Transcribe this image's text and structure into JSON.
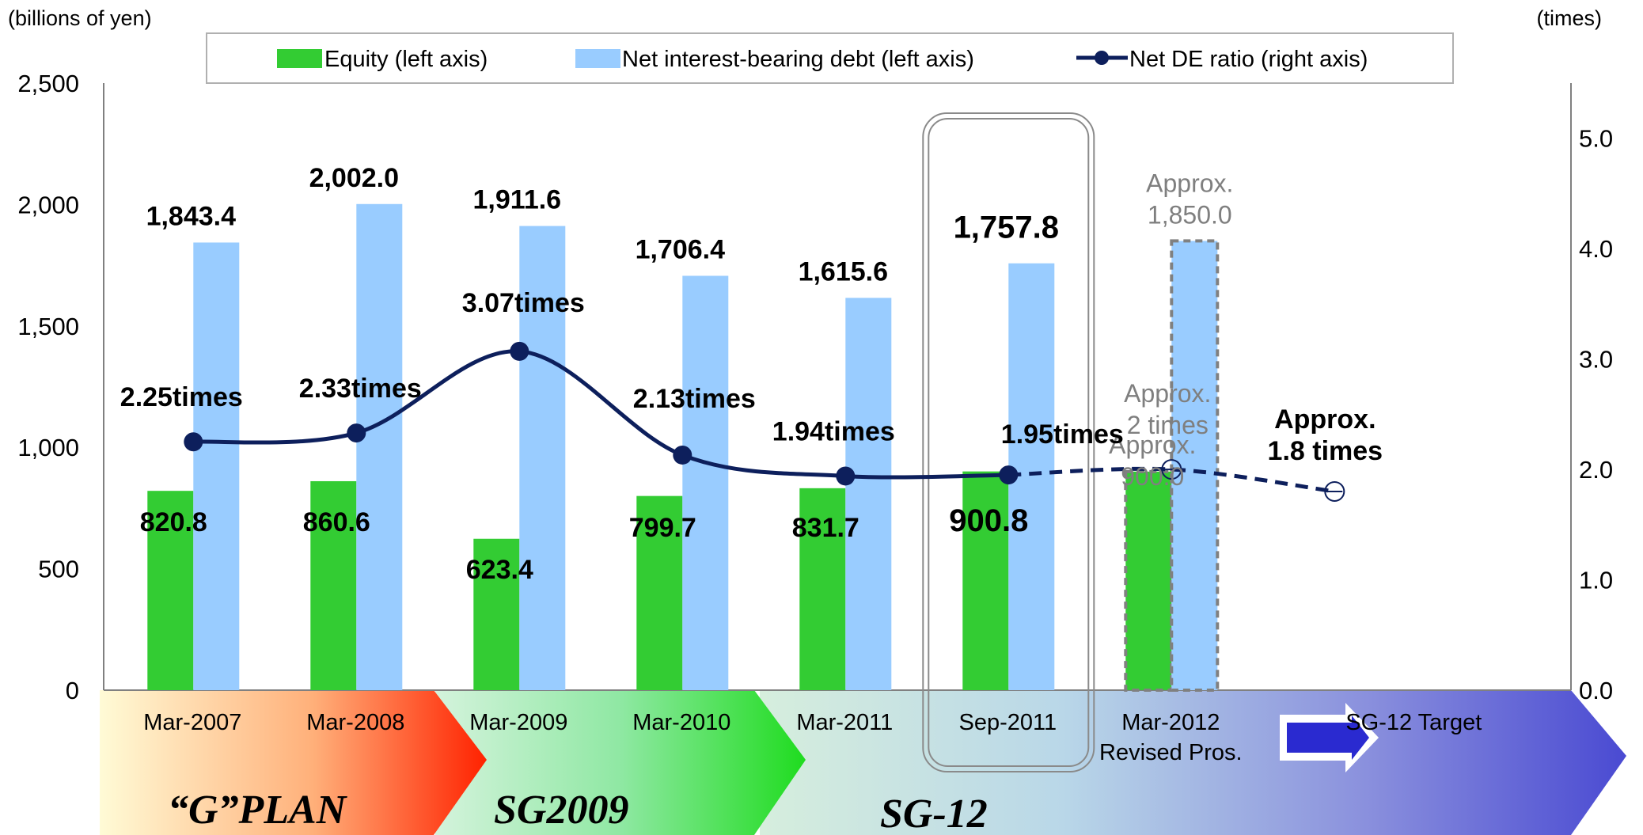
{
  "chart_data": {
    "type": "bar",
    "title": "",
    "y_left_unit": "(billions of yen)",
    "y_right_unit": "(times)",
    "y_left_ticks": [
      "0",
      "500",
      "1,000",
      "1,500",
      "2,000",
      "2,500"
    ],
    "y_right_ticks": [
      "0.0",
      "1.0",
      "2.0",
      "3.0",
      "4.0",
      "5.0"
    ],
    "ylim_left": [
      0,
      2500
    ],
    "ylim_right": [
      0,
      5.5
    ],
    "categories": [
      "Mar-2007",
      "Mar-2008",
      "Mar-2009",
      "Mar-2010",
      "Mar-2011",
      "Sep-2011",
      "Mar-2012",
      "SG-12 Target"
    ],
    "category_sublabels": [
      "",
      "",
      "",
      "",
      "",
      "",
      "Revised Pros.",
      ""
    ],
    "series": [
      {
        "name": "Equity (left axis)",
        "axis": "left",
        "color": "#33cc33",
        "values": [
          820.8,
          860.6,
          623.4,
          799.7,
          831.7,
          900.8,
          900.0,
          null
        ],
        "labels": [
          "820.8",
          "860.6",
          "623.4",
          "799.7",
          "831.7",
          "900.8",
          "Approx.|900.0",
          ""
        ]
      },
      {
        "name": "Net interest-bearing debt (left axis)",
        "axis": "left",
        "color": "#99ccff",
        "values": [
          1843.4,
          2002.0,
          1911.6,
          1706.4,
          1615.6,
          1757.8,
          1850.0,
          null
        ],
        "labels": [
          "1,843.4",
          "2,002.0",
          "1,911.6",
          "1,706.4",
          "1,615.6",
          "1,757.8",
          "Approx.|1,850.0",
          ""
        ]
      },
      {
        "name": "Net DE ratio (right axis)",
        "axis": "right",
        "type": "line",
        "color": "#0d1f5c",
        "values": [
          2.25,
          2.33,
          3.07,
          2.13,
          1.94,
          1.95,
          2.0,
          1.8
        ],
        "labels": [
          "2.25times",
          "2.33times",
          "3.07times",
          "2.13times",
          "1.94times",
          "1.95times",
          "Approx.|2 times",
          "Approx.|1.8 times"
        ]
      }
    ],
    "projected_categories": [
      "Mar-2012",
      "SG-12 Target"
    ],
    "highlighted_category": "Sep-2011",
    "plans": [
      {
        "name": "“G”PLAN",
        "color": "#ff3300"
      },
      {
        "name": "SG2009",
        "color": "#22dd22"
      },
      {
        "name": "SG-12",
        "color": "#4b4bd6"
      }
    ],
    "legend_position": "top"
  }
}
